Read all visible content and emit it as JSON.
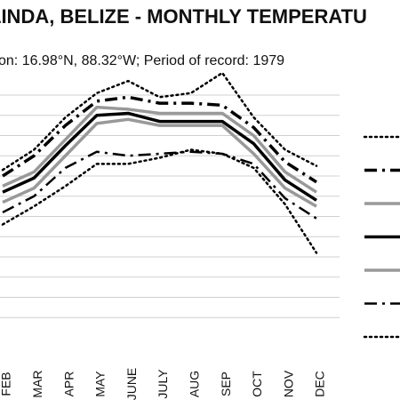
{
  "chart_data": {
    "type": "line",
    "title": "LINDA, BELIZE - MONTHLY TEMPERATU",
    "subtitle": "on: 16.98°N, 88.32°W; Period of record: 1979",
    "categories": [
      "FEB",
      "MAR",
      "APR",
      "MAY",
      "JUNE",
      "JULY",
      "AUG",
      "SEP",
      "OCT",
      "NOV",
      "DEC"
    ],
    "ylim": [
      0,
      12
    ],
    "grid": true,
    "legend_position": "right",
    "series": [
      {
        "style": "dotted",
        "color": "#000000",
        "values": [
          8.3,
          9.3,
          10.9,
          12.1,
          12.7,
          11.9,
          12.1,
          13.1,
          10.9,
          9.3,
          8.5
        ]
      },
      {
        "style": "dash-dot-heavy",
        "color": "#000000",
        "values": [
          8.0,
          9.0,
          10.5,
          11.7,
          11.9,
          11.6,
          11.6,
          11.5,
          10.4,
          8.7,
          7.7
        ]
      },
      {
        "style": "solid",
        "color": "#999999",
        "values": [
          7.5,
          8.2,
          9.8,
          11.4,
          11.3,
          11.1,
          11.1,
          11.1,
          10.0,
          8.2,
          7.2
        ]
      },
      {
        "style": "solid-heavy",
        "color": "#000000",
        "values": [
          7.2,
          7.9,
          9.5,
          11.0,
          11.1,
          10.7,
          10.7,
          10.7,
          9.6,
          7.8,
          6.8
        ]
      },
      {
        "style": "solid",
        "color": "#999999",
        "values": [
          6.7,
          7.4,
          9.0,
          10.6,
          10.8,
          10.5,
          10.5,
          10.5,
          9.1,
          7.4,
          6.5
        ]
      },
      {
        "style": "dash-dot",
        "color": "#000000",
        "values": [
          6.2,
          7.0,
          8.4,
          9.2,
          9.0,
          9.1,
          9.2,
          9.1,
          8.6,
          6.9,
          5.9
        ]
      },
      {
        "style": "dotted",
        "color": "#000000",
        "values": [
          5.6,
          6.5,
          7.5,
          8.6,
          8.6,
          8.9,
          9.3,
          9.1,
          8.4,
          6.6,
          4.2
        ]
      }
    ]
  }
}
